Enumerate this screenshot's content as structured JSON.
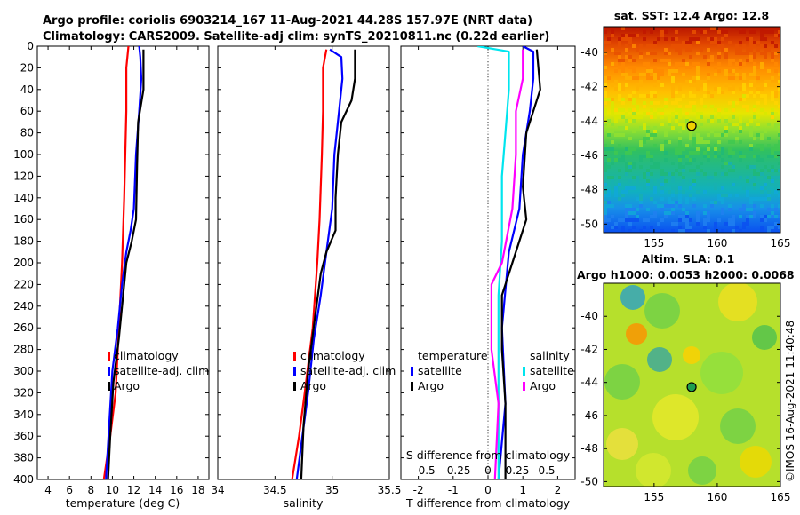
{
  "figure": {
    "title_line1": "Argo profile: coriolis 6903214_167 11-Aug-2021 44.28S 157.97E (NRT data)",
    "title_line2": "Climatology: CARS2009. Satellite-adj clim: synTS_20210811.nc (0.22d earlier)",
    "watermark": "©IMOS 16-Aug-2021 11:40:48"
  },
  "colors": {
    "climatology": "#ff0000",
    "satellite": "#0000ff",
    "argo": "#000000",
    "sal_satellite": "#00e5ee",
    "sal_argo": "#ff00ff",
    "marker_fill": "#f0d000"
  },
  "chart_data": [
    {
      "id": "temperature",
      "type": "line",
      "xlabel": "temperature (deg C)",
      "ylabel": "",
      "xlim": [
        3,
        19
      ],
      "ylim": [
        400,
        0
      ],
      "xticks": [
        4,
        6,
        8,
        10,
        12,
        14,
        16,
        18
      ],
      "yticks": [
        0,
        20,
        40,
        60,
        80,
        100,
        120,
        140,
        160,
        180,
        200,
        220,
        240,
        260,
        280,
        300,
        320,
        340,
        360,
        380,
        400
      ],
      "legend": [
        "climatology",
        "satellite-adj. clim",
        "Argo"
      ],
      "series": [
        {
          "name": "climatology",
          "color_key": "climatology",
          "points": [
            [
              11.5,
              0
            ],
            [
              11.3,
              20
            ],
            [
              11.3,
              60
            ],
            [
              11.2,
              100
            ],
            [
              11.1,
              140
            ],
            [
              10.9,
              200
            ],
            [
              10.6,
              260
            ],
            [
              10.3,
              320
            ],
            [
              9.8,
              360
            ],
            [
              9.2,
              400
            ]
          ]
        },
        {
          "name": "satellite-adj. clim",
          "color_key": "satellite",
          "points": [
            [
              12.5,
              0
            ],
            [
              12.6,
              10
            ],
            [
              12.7,
              30
            ],
            [
              12.5,
              60
            ],
            [
              12.2,
              100
            ],
            [
              12.0,
              150
            ],
            [
              11.7,
              170
            ],
            [
              11.3,
              190
            ],
            [
              10.9,
              220
            ],
            [
              10.5,
              260
            ],
            [
              10.0,
              300
            ],
            [
              9.7,
              350
            ],
            [
              9.4,
              400
            ]
          ]
        },
        {
          "name": "Argo",
          "color_key": "argo",
          "points": [
            [
              12.9,
              3
            ],
            [
              12.9,
              40
            ],
            [
              12.4,
              70
            ],
            [
              12.3,
              110
            ],
            [
              12.2,
              160
            ],
            [
              11.8,
              180
            ],
            [
              11.3,
              200
            ],
            [
              11.0,
              230
            ],
            [
              10.6,
              270
            ],
            [
              10.1,
              310
            ],
            [
              9.8,
              360
            ],
            [
              9.6,
              400
            ]
          ]
        }
      ]
    },
    {
      "id": "salinity",
      "type": "line",
      "xlabel": "salinity",
      "ylabel": "",
      "xlim": [
        34.0,
        35.5
      ],
      "ylim": [
        400,
        0
      ],
      "xticks": [
        34,
        34.5,
        35,
        35.5
      ],
      "xticklabels": [
        "34",
        "34.5",
        "35",
        "35.5"
      ],
      "legend": [
        "climatology",
        "satellite-adj. clim",
        "Argo"
      ],
      "series": [
        {
          "name": "climatology",
          "color_key": "climatology",
          "points": [
            [
              34.95,
              3
            ],
            [
              34.92,
              20
            ],
            [
              34.92,
              60
            ],
            [
              34.91,
              100
            ],
            [
              34.89,
              160
            ],
            [
              34.87,
              200
            ],
            [
              34.83,
              260
            ],
            [
              34.76,
              320
            ],
            [
              34.71,
              360
            ],
            [
              34.65,
              400
            ]
          ]
        },
        {
          "name": "satellite-adj. clim",
          "color_key": "satellite",
          "points": [
            [
              34.98,
              3
            ],
            [
              35.08,
              10
            ],
            [
              35.09,
              30
            ],
            [
              35.06,
              60
            ],
            [
              35.02,
              100
            ],
            [
              35.0,
              150
            ],
            [
              34.95,
              190
            ],
            [
              34.9,
              230
            ],
            [
              34.84,
              270
            ],
            [
              34.79,
              320
            ],
            [
              34.74,
              360
            ],
            [
              34.69,
              400
            ]
          ]
        },
        {
          "name": "Argo",
          "color_key": "argo",
          "points": [
            [
              35.2,
              3
            ],
            [
              35.2,
              30
            ],
            [
              35.17,
              50
            ],
            [
              35.08,
              70
            ],
            [
              35.05,
              100
            ],
            [
              35.03,
              140
            ],
            [
              35.03,
              170
            ],
            [
              34.95,
              190
            ],
            [
              34.9,
              210
            ],
            [
              34.85,
              250
            ],
            [
              34.79,
              300
            ],
            [
              34.75,
              350
            ],
            [
              34.73,
              400
            ]
          ]
        }
      ]
    },
    {
      "id": "difference",
      "type": "line",
      "xlabel": "T difference from climatology",
      "ylabel": "",
      "xlim": [
        -2.5,
        2.5
      ],
      "ylim": [
        400,
        0
      ],
      "xticks": [
        -2,
        -1,
        0,
        1,
        2
      ],
      "xticklabels": [
        "-2",
        "-1",
        "0",
        "1",
        "2"
      ],
      "secondary_xlabel": "S difference from climatology",
      "secondary_ticks": [
        "-0.5",
        "-0.25",
        "0",
        "0.25",
        "0.5"
      ],
      "legend_left": {
        "title": "temperature",
        "entries": [
          "satellite",
          "Argo"
        ]
      },
      "legend_right": {
        "title": "salinity",
        "entries": [
          "satellite",
          "Argo"
        ]
      },
      "series": [
        {
          "name": "temperature satellite",
          "color_key": "satellite",
          "points": [
            [
              1.0,
              0
            ],
            [
              1.3,
              5
            ],
            [
              1.3,
              30
            ],
            [
              1.2,
              60
            ],
            [
              1.0,
              100
            ],
            [
              0.9,
              150
            ],
            [
              0.6,
              190
            ],
            [
              0.4,
              260
            ],
            [
              0.5,
              330
            ],
            [
              0.3,
              400
            ]
          ]
        },
        {
          "name": "temperature Argo",
          "color_key": "argo",
          "points": [
            [
              1.4,
              3
            ],
            [
              1.5,
              40
            ],
            [
              1.1,
              80
            ],
            [
              1.0,
              130
            ],
            [
              1.1,
              160
            ],
            [
              0.7,
              200
            ],
            [
              0.4,
              230
            ],
            [
              0.4,
              280
            ],
            [
              0.5,
              330
            ],
            [
              0.5,
              400
            ]
          ]
        },
        {
          "name": "salinity satellite",
          "color_key": "sal_satellite",
          "points": [
            [
              -0.3,
              0
            ],
            [
              0.6,
              5
            ],
            [
              0.6,
              40
            ],
            [
              0.5,
              80
            ],
            [
              0.4,
              120
            ],
            [
              0.4,
              180
            ],
            [
              0.3,
              230
            ],
            [
              0.3,
              320
            ],
            [
              0.3,
              400
            ]
          ]
        },
        {
          "name": "salinity Argo",
          "color_key": "sal_argo",
          "points": [
            [
              1.0,
              3
            ],
            [
              1.0,
              30
            ],
            [
              0.8,
              60
            ],
            [
              0.8,
              100
            ],
            [
              0.7,
              150
            ],
            [
              0.4,
              200
            ],
            [
              0.1,
              220
            ],
            [
              0.1,
              280
            ],
            [
              0.3,
              330
            ],
            [
              0.2,
              400
            ]
          ]
        }
      ]
    },
    {
      "id": "sst_map",
      "type": "heatmap",
      "title": "sat. SST: 12.4 Argo: 12.8",
      "xlim": [
        151,
        165
      ],
      "ylim": [
        -50.5,
        -38.5
      ],
      "xticks": [
        155,
        160,
        165
      ],
      "yticks": [
        -40,
        -42,
        -44,
        -46,
        -48,
        -50
      ],
      "marker": {
        "lon": 157.97,
        "lat": -44.28
      }
    },
    {
      "id": "sla_map",
      "type": "heatmap",
      "title_line1": "Altim. SLA: 0.1",
      "title_line2": "Argo h1000: 0.0053 h2000: 0.0068",
      "xlim": [
        151,
        165
      ],
      "ylim": [
        -50.3,
        -38.0
      ],
      "xticks": [
        155,
        160,
        165
      ],
      "yticks": [
        -40,
        -42,
        -44,
        -46,
        -48,
        -50
      ],
      "marker": {
        "lon": 157.97,
        "lat": -44.28
      }
    }
  ]
}
